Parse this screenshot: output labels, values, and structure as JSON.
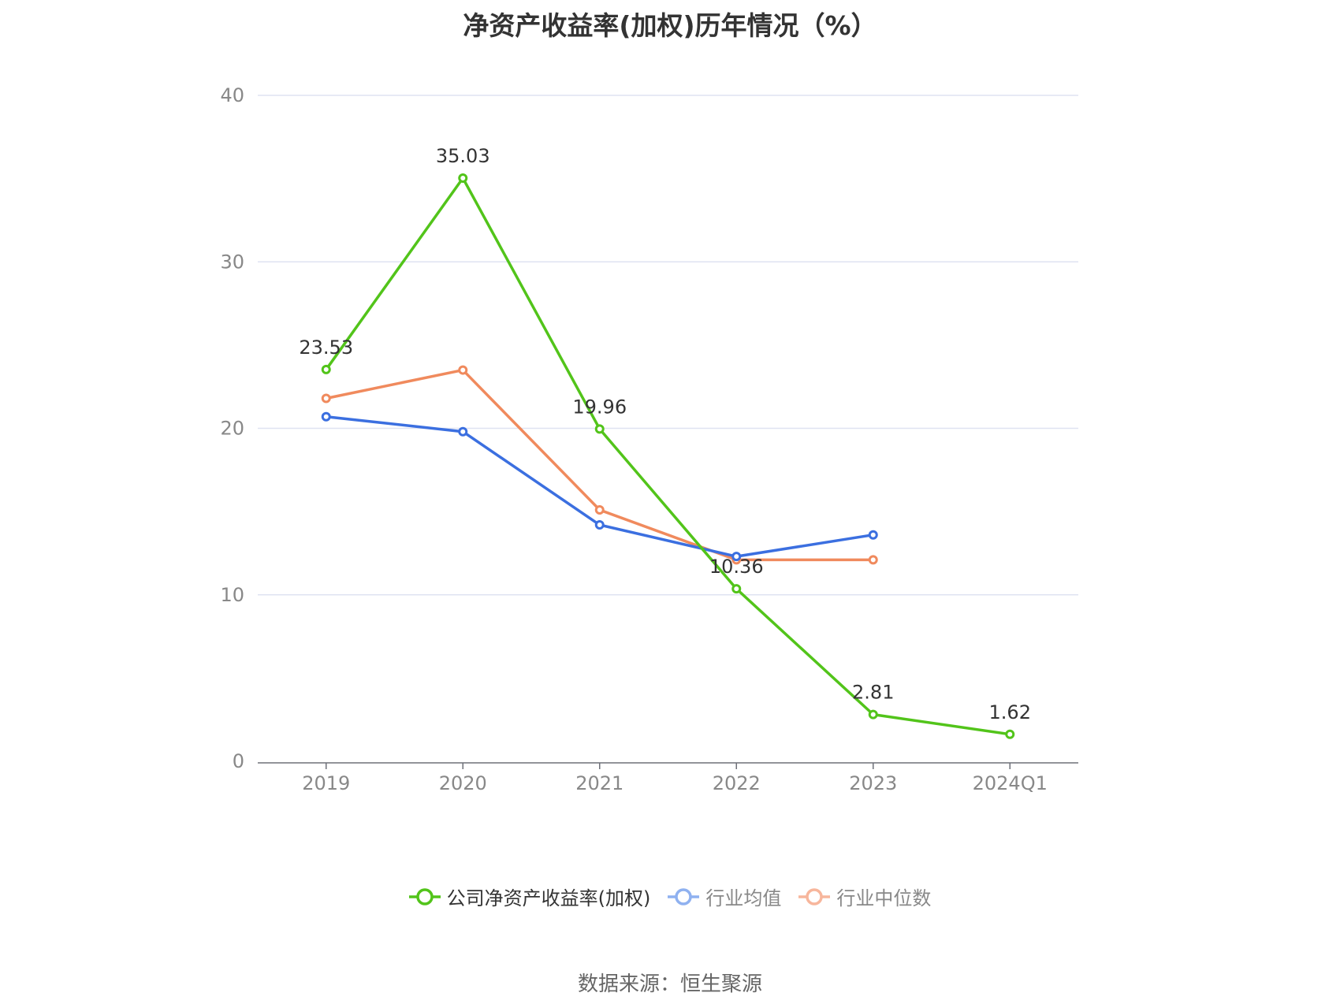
{
  "chart_data": {
    "type": "line",
    "title": "净资产收益率(加权)历年情况（%）",
    "categories": [
      "2019",
      "2020",
      "2021",
      "2022",
      "2023",
      "2024Q1"
    ],
    "ylim": [
      0,
      40
    ],
    "yticks": [
      0,
      10,
      20,
      30,
      40
    ],
    "grid": true,
    "legend_position": "bottom",
    "series": [
      {
        "name": "公司净资产收益率(加权)",
        "color": "#52c41a",
        "values": [
          23.53,
          35.03,
          19.96,
          10.36,
          2.81,
          1.62
        ],
        "labels": [
          "23.53",
          "35.03",
          "19.96",
          "10.36",
          "2.81",
          "1.62"
        ]
      },
      {
        "name": "行业均值",
        "color": "#3b6fe0",
        "values": [
          20.7,
          19.8,
          14.2,
          12.3,
          13.6,
          null
        ]
      },
      {
        "name": "行业中位数",
        "color": "#f08a5d",
        "values": [
          21.8,
          23.5,
          15.1,
          12.1,
          12.1,
          null
        ]
      }
    ],
    "legend_colors": [
      "#52c41a",
      "#8fb1f0",
      "#f7b69c"
    ]
  },
  "footer": {
    "source": "数据来源：恒生聚源"
  }
}
